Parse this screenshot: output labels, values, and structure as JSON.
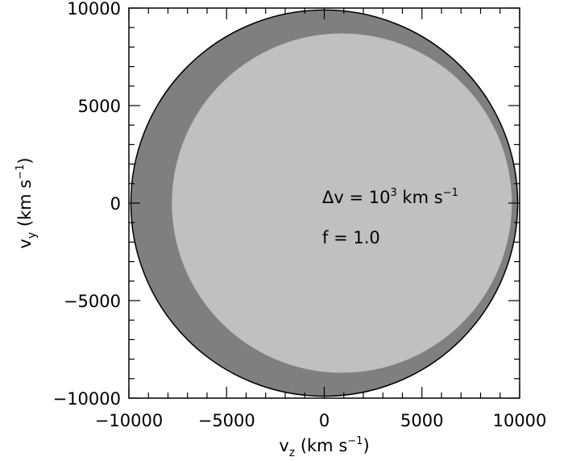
{
  "chart_data": {
    "type": "area",
    "title": "",
    "xlabel": {
      "base": "v",
      "subscript": "z",
      "unit_pre": " (km s",
      "unit_sup": "−1",
      "unit_post": ")"
    },
    "ylabel": {
      "base": "v",
      "subscript": "y",
      "unit_pre": " (km s",
      "unit_sup": "−1",
      "unit_post": ")"
    },
    "xlim": [
      -10000,
      10000
    ],
    "ylim": [
      -10000,
      10000
    ],
    "xticks": [
      -10000,
      -5000,
      0,
      5000,
      10000
    ],
    "yticks": [
      -10000,
      -5000,
      0,
      5000,
      10000
    ],
    "xtick_labels": [
      "−10000",
      "−5000",
      "0",
      "5000",
      "10000"
    ],
    "ytick_labels": [
      "−10000",
      "−5000",
      "0",
      "5000",
      "10000"
    ],
    "minor_tick_step": 1000,
    "grid": false,
    "regions": [
      {
        "id": "outer",
        "color": "#7f7f7f",
        "shape": "circle",
        "center": [
          0,
          0
        ],
        "radius": 9900
      },
      {
        "id": "inner",
        "color": "#c0c0c0",
        "shape": "ellipse",
        "center": [
          900,
          0
        ],
        "radius_x": 8700,
        "radius_y": 8700
      }
    ],
    "annotations": {
      "delta_v": {
        "pre": "Δv = 10",
        "sup": "3",
        "post": " km s",
        "sup2": "−1"
      },
      "f": "f = 1.0"
    }
  }
}
